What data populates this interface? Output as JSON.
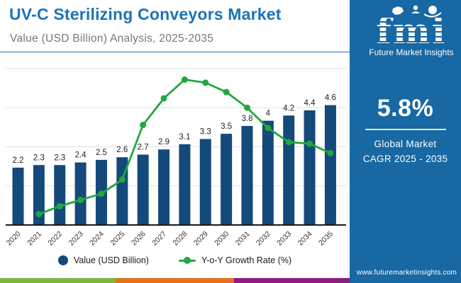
{
  "header": {
    "title": "UV-C Sterilizing Conveyors Market",
    "subtitle": "Value (USD Billion) Analysis, 2025-2035"
  },
  "sidebar": {
    "logo": {
      "brand": "fmi",
      "tagline": "Future Market Insights",
      "icons": [
        "map-icon",
        "people-icon",
        "globe-icon"
      ]
    },
    "cagr": {
      "value": "5.8%",
      "label_line1": "Global Market",
      "label_line2": "CAGR 2025 - 2035"
    },
    "website": "www.futuremarketinsights.com",
    "bg_color": "#1768A3"
  },
  "legend": {
    "items": [
      {
        "label": "Value (USD Billion)",
        "marker": "circle",
        "color": "#14497B"
      },
      {
        "label": "Y-o-Y Growth Rate (%)",
        "marker": "line-dot",
        "color": "#22A73C"
      }
    ]
  },
  "footer_strip": {
    "colors": [
      "#7CB842",
      "#E4711F",
      "#8C1D82"
    ],
    "widths": [
      163,
      167,
      163
    ]
  },
  "chart_data": {
    "type": "bar+line",
    "title": "UV-C Sterilizing Conveyors Market",
    "xlabel": "",
    "ylabel": "Value (USD Billion)",
    "categories": [
      "2020",
      "2021",
      "2022",
      "2023",
      "2024",
      "2025",
      "2026",
      "2027",
      "2028",
      "2029",
      "2030",
      "2031",
      "2032",
      "2033",
      "2034",
      "2035"
    ],
    "series": [
      {
        "name": "Value (USD Billion)",
        "type": "bar",
        "axis": "primary",
        "color": "#14497B",
        "values": [
          2.2,
          2.3,
          2.3,
          2.4,
          2.5,
          2.6,
          2.7,
          2.9,
          3.1,
          3.3,
          3.5,
          3.8,
          4,
          4.2,
          4.4,
          4.6
        ],
        "labels": [
          "2.2",
          "2.3",
          "2.3",
          "2.4",
          "2.5",
          "2.6",
          "2.7",
          "2.9",
          "3.1",
          "3.3",
          "3.5",
          "3.8",
          "4",
          "4.2",
          "4.4",
          "4.6"
        ]
      },
      {
        "name": "Y-o-Y Growth Rate (%)",
        "type": "line",
        "axis": "secondary",
        "color": "#22A73C",
        "values": [
          null,
          0.7,
          1.2,
          1.6,
          2.0,
          2.9,
          6.4,
          8.1,
          9.3,
          9.1,
          8.5,
          7.5,
          6.2,
          5.3,
          5.2,
          4.6
        ]
      }
    ],
    "ylim_primary": [
      0,
      6
    ],
    "ylim_secondary": [
      0,
      10
    ],
    "grid": true,
    "gridline_values": [
      1.5,
      3,
      4.5,
      6
    ],
    "gridline_color": "#E2E2E2",
    "axis_color": "#1A1A1A",
    "tick_label_color": "#333333",
    "bar_label_color": "#1F1F1F",
    "legend_position": "bottom"
  }
}
